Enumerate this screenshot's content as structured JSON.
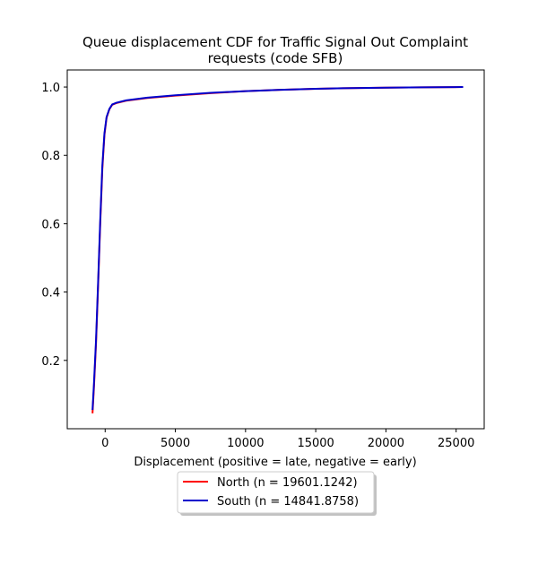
{
  "chart_data": {
    "type": "line",
    "title_lines": [
      "Queue displacement CDF for Traffic Signal Out Complaint",
      "requests (code SFB)"
    ],
    "xlabel": "Displacement (positive = late, negative = early)",
    "ylabel": "",
    "xlim": [
      -2700,
      27000
    ],
    "ylim": [
      0.0,
      1.05
    ],
    "xticks": [
      0,
      5000,
      10000,
      15000,
      20000,
      25000
    ],
    "xtick_labels": [
      "0",
      "5000",
      "10000",
      "15000",
      "20000",
      "25000"
    ],
    "yticks": [
      0.2,
      0.4,
      0.6,
      0.8,
      1.0
    ],
    "ytick_labels": [
      "0.2",
      "0.4",
      "0.6",
      "0.8",
      "1.0"
    ],
    "grid": false,
    "legend_placement": "below-center",
    "series": [
      {
        "name": "North (n = 19601.1242)",
        "color": "#ff0000",
        "points": [
          [
            -900,
            0.045
          ],
          [
            -800,
            0.12
          ],
          [
            -650,
            0.25
          ],
          [
            -500,
            0.42
          ],
          [
            -350,
            0.6
          ],
          [
            -200,
            0.76
          ],
          [
            -50,
            0.86
          ],
          [
            100,
            0.91
          ],
          [
            300,
            0.935
          ],
          [
            500,
            0.948
          ],
          [
            800,
            0.953
          ],
          [
            1500,
            0.96
          ],
          [
            3000,
            0.968
          ],
          [
            5000,
            0.975
          ],
          [
            7500,
            0.982
          ],
          [
            10000,
            0.988
          ],
          [
            12500,
            0.992
          ],
          [
            15000,
            0.995
          ],
          [
            17500,
            0.997
          ],
          [
            20000,
            0.998
          ],
          [
            22500,
            0.999
          ],
          [
            25500,
            1.0
          ]
        ]
      },
      {
        "name": "South (n = 14841.8758)",
        "color": "#0000cc",
        "points": [
          [
            -900,
            0.055
          ],
          [
            -800,
            0.13
          ],
          [
            -650,
            0.26
          ],
          [
            -500,
            0.43
          ],
          [
            -350,
            0.61
          ],
          [
            -200,
            0.77
          ],
          [
            -50,
            0.865
          ],
          [
            100,
            0.912
          ],
          [
            300,
            0.936
          ],
          [
            500,
            0.949
          ],
          [
            800,
            0.954
          ],
          [
            1500,
            0.961
          ],
          [
            3000,
            0.969
          ],
          [
            5000,
            0.976
          ],
          [
            7500,
            0.983
          ],
          [
            10000,
            0.988
          ],
          [
            12500,
            0.992
          ],
          [
            15000,
            0.995
          ],
          [
            17500,
            0.997
          ],
          [
            20000,
            0.998
          ],
          [
            22500,
            0.999
          ],
          [
            25500,
            1.0
          ]
        ]
      }
    ]
  }
}
